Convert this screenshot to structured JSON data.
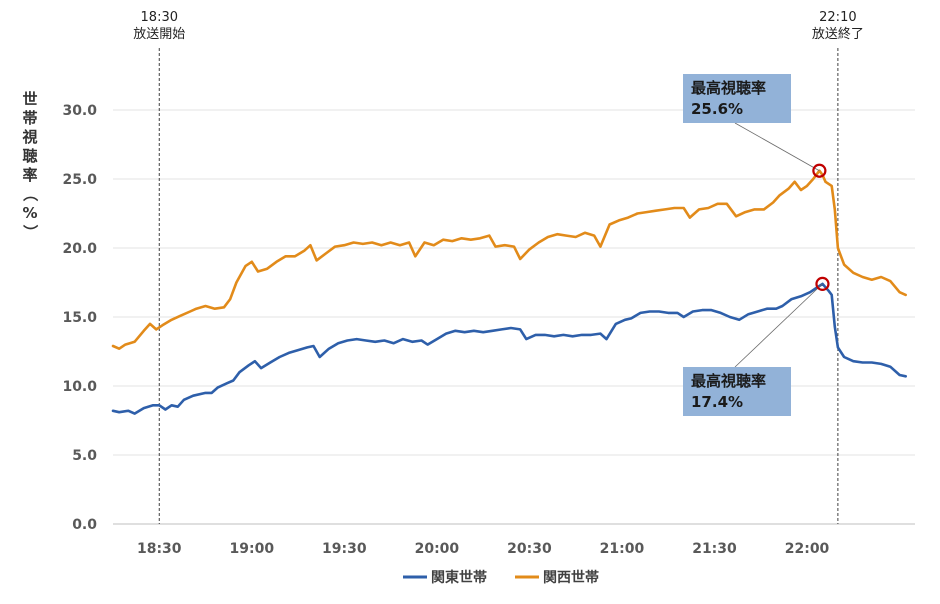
{
  "chart_data": {
    "type": "line",
    "ylabel": "世帯視聴率（%）",
    "ylim": [
      0,
      30
    ],
    "yticks": [
      "0.0",
      "5.0",
      "10.0",
      "15.0",
      "20.0",
      "25.0",
      "30.0"
    ],
    "x_start": "18:15",
    "x_end": "22:35",
    "xticks": [
      "18:30",
      "19:00",
      "19:30",
      "20:00",
      "20:30",
      "21:00",
      "21:30",
      "22:00"
    ],
    "grid": true,
    "legend_position": "bottom",
    "markers": [
      {
        "time": "18:30",
        "label_time": "18:30",
        "label_text": "放送開始"
      },
      {
        "time": "22:10",
        "label_time": "22:10",
        "label_text": "放送終了"
      }
    ],
    "series": [
      {
        "name": "関東世帯",
        "color": "#2e5faa",
        "points": [
          [
            "18:15",
            8.2
          ],
          [
            "18:17",
            8.1
          ],
          [
            "18:20",
            8.2
          ],
          [
            "18:22",
            8.0
          ],
          [
            "18:25",
            8.4
          ],
          [
            "18:28",
            8.6
          ],
          [
            "18:30",
            8.6
          ],
          [
            "18:32",
            8.3
          ],
          [
            "18:34",
            8.6
          ],
          [
            "18:36",
            8.5
          ],
          [
            "18:38",
            9.0
          ],
          [
            "18:41",
            9.3
          ],
          [
            "18:45",
            9.5
          ],
          [
            "18:47",
            9.5
          ],
          [
            "18:49",
            9.9
          ],
          [
            "18:52",
            10.2
          ],
          [
            "18:54",
            10.4
          ],
          [
            "18:56",
            11.0
          ],
          [
            "18:59",
            11.5
          ],
          [
            "19:01",
            11.8
          ],
          [
            "19:03",
            11.3
          ],
          [
            "19:06",
            11.7
          ],
          [
            "19:09",
            12.1
          ],
          [
            "19:12",
            12.4
          ],
          [
            "19:15",
            12.6
          ],
          [
            "19:18",
            12.8
          ],
          [
            "19:20",
            12.9
          ],
          [
            "19:22",
            12.1
          ],
          [
            "19:25",
            12.7
          ],
          [
            "19:28",
            13.1
          ],
          [
            "19:31",
            13.3
          ],
          [
            "19:34",
            13.4
          ],
          [
            "19:37",
            13.3
          ],
          [
            "19:40",
            13.2
          ],
          [
            "19:43",
            13.3
          ],
          [
            "19:46",
            13.1
          ],
          [
            "19:49",
            13.4
          ],
          [
            "19:52",
            13.2
          ],
          [
            "19:55",
            13.3
          ],
          [
            "19:57",
            13.0
          ],
          [
            "20:00",
            13.4
          ],
          [
            "20:03",
            13.8
          ],
          [
            "20:06",
            14.0
          ],
          [
            "20:09",
            13.9
          ],
          [
            "20:12",
            14.0
          ],
          [
            "20:15",
            13.9
          ],
          [
            "20:18",
            14.0
          ],
          [
            "20:21",
            14.1
          ],
          [
            "20:24",
            14.2
          ],
          [
            "20:27",
            14.1
          ],
          [
            "20:29",
            13.4
          ],
          [
            "20:32",
            13.7
          ],
          [
            "20:35",
            13.7
          ],
          [
            "20:38",
            13.6
          ],
          [
            "20:41",
            13.7
          ],
          [
            "20:44",
            13.6
          ],
          [
            "20:47",
            13.7
          ],
          [
            "20:50",
            13.7
          ],
          [
            "20:53",
            13.8
          ],
          [
            "20:55",
            13.4
          ],
          [
            "20:58",
            14.5
          ],
          [
            "21:01",
            14.8
          ],
          [
            "21:03",
            14.9
          ],
          [
            "21:06",
            15.3
          ],
          [
            "21:09",
            15.4
          ],
          [
            "21:12",
            15.4
          ],
          [
            "21:15",
            15.3
          ],
          [
            "21:18",
            15.3
          ],
          [
            "21:20",
            15.0
          ],
          [
            "21:23",
            15.4
          ],
          [
            "21:26",
            15.5
          ],
          [
            "21:29",
            15.5
          ],
          [
            "21:32",
            15.3
          ],
          [
            "21:35",
            15.0
          ],
          [
            "21:38",
            14.8
          ],
          [
            "21:41",
            15.2
          ],
          [
            "21:44",
            15.4
          ],
          [
            "21:47",
            15.6
          ],
          [
            "21:50",
            15.6
          ],
          [
            "21:52",
            15.8
          ],
          [
            "21:55",
            16.3
          ],
          [
            "21:58",
            16.5
          ],
          [
            "22:01",
            16.8
          ],
          [
            "22:03",
            17.1
          ],
          [
            "22:05",
            17.4
          ],
          [
            "22:07",
            16.9
          ],
          [
            "22:08",
            16.6
          ],
          [
            "22:09",
            14.3
          ],
          [
            "22:10",
            12.8
          ],
          [
            "22:12",
            12.1
          ],
          [
            "22:15",
            11.8
          ],
          [
            "22:18",
            11.7
          ],
          [
            "22:21",
            11.7
          ],
          [
            "22:24",
            11.6
          ],
          [
            "22:27",
            11.4
          ],
          [
            "22:30",
            10.8
          ],
          [
            "22:32",
            10.7
          ]
        ]
      },
      {
        "name": "関西世帯",
        "color": "#e28b1a",
        "points": [
          [
            "18:15",
            12.9
          ],
          [
            "18:17",
            12.7
          ],
          [
            "18:19",
            13.0
          ],
          [
            "18:22",
            13.2
          ],
          [
            "18:25",
            14.0
          ],
          [
            "18:27",
            14.5
          ],
          [
            "18:29",
            14.1
          ],
          [
            "18:31",
            14.4
          ],
          [
            "18:34",
            14.8
          ],
          [
            "18:37",
            15.1
          ],
          [
            "18:40",
            15.4
          ],
          [
            "18:42",
            15.6
          ],
          [
            "18:45",
            15.8
          ],
          [
            "18:48",
            15.6
          ],
          [
            "18:51",
            15.7
          ],
          [
            "18:53",
            16.3
          ],
          [
            "18:55",
            17.5
          ],
          [
            "18:58",
            18.7
          ],
          [
            "19:00",
            19.0
          ],
          [
            "19:02",
            18.3
          ],
          [
            "19:05",
            18.5
          ],
          [
            "19:08",
            19.0
          ],
          [
            "19:11",
            19.4
          ],
          [
            "19:14",
            19.4
          ],
          [
            "19:17",
            19.8
          ],
          [
            "19:19",
            20.2
          ],
          [
            "19:21",
            19.1
          ],
          [
            "19:24",
            19.6
          ],
          [
            "19:27",
            20.1
          ],
          [
            "19:30",
            20.2
          ],
          [
            "19:33",
            20.4
          ],
          [
            "19:36",
            20.3
          ],
          [
            "19:39",
            20.4
          ],
          [
            "19:42",
            20.2
          ],
          [
            "19:45",
            20.4
          ],
          [
            "19:48",
            20.2
          ],
          [
            "19:51",
            20.4
          ],
          [
            "19:53",
            19.4
          ],
          [
            "19:56",
            20.4
          ],
          [
            "19:59",
            20.2
          ],
          [
            "20:02",
            20.6
          ],
          [
            "20:05",
            20.5
          ],
          [
            "20:08",
            20.7
          ],
          [
            "20:11",
            20.6
          ],
          [
            "20:14",
            20.7
          ],
          [
            "20:17",
            20.9
          ],
          [
            "20:19",
            20.1
          ],
          [
            "20:22",
            20.2
          ],
          [
            "20:25",
            20.1
          ],
          [
            "20:27",
            19.2
          ],
          [
            "20:30",
            19.9
          ],
          [
            "20:33",
            20.4
          ],
          [
            "20:36",
            20.8
          ],
          [
            "20:39",
            21.0
          ],
          [
            "20:42",
            20.9
          ],
          [
            "20:45",
            20.8
          ],
          [
            "20:48",
            21.1
          ],
          [
            "20:51",
            20.9
          ],
          [
            "20:53",
            20.1
          ],
          [
            "20:56",
            21.7
          ],
          [
            "20:59",
            22.0
          ],
          [
            "21:02",
            22.2
          ],
          [
            "21:05",
            22.5
          ],
          [
            "21:08",
            22.6
          ],
          [
            "21:11",
            22.7
          ],
          [
            "21:14",
            22.8
          ],
          [
            "21:17",
            22.9
          ],
          [
            "21:20",
            22.9
          ],
          [
            "21:22",
            22.2
          ],
          [
            "21:25",
            22.8
          ],
          [
            "21:28",
            22.9
          ],
          [
            "21:31",
            23.2
          ],
          [
            "21:34",
            23.2
          ],
          [
            "21:37",
            22.3
          ],
          [
            "21:40",
            22.6
          ],
          [
            "21:43",
            22.8
          ],
          [
            "21:46",
            22.8
          ],
          [
            "21:49",
            23.3
          ],
          [
            "21:51",
            23.8
          ],
          [
            "21:54",
            24.3
          ],
          [
            "21:56",
            24.8
          ],
          [
            "21:58",
            24.2
          ],
          [
            "22:00",
            24.5
          ],
          [
            "22:02",
            25.0
          ],
          [
            "22:04",
            25.6
          ],
          [
            "22:05",
            25.3
          ],
          [
            "22:06",
            24.8
          ],
          [
            "22:08",
            24.5
          ],
          [
            "22:09",
            22.8
          ],
          [
            "22:10",
            20.0
          ],
          [
            "22:12",
            18.8
          ],
          [
            "22:15",
            18.2
          ],
          [
            "22:18",
            17.9
          ],
          [
            "22:21",
            17.7
          ],
          [
            "22:24",
            17.9
          ],
          [
            "22:27",
            17.6
          ],
          [
            "22:30",
            16.8
          ],
          [
            "22:32",
            16.6
          ]
        ]
      }
    ],
    "callouts": [
      {
        "series": "関西世帯",
        "time": "22:04",
        "value": 25.6,
        "label": "最高視聴率",
        "value_text": "25.6%",
        "box_color": "#92b2d8",
        "circle_color": "#c00000"
      },
      {
        "series": "関東世帯",
        "time": "22:05",
        "value": 17.4,
        "label": "最高視聴率",
        "value_text": "17.4%",
        "box_color": "#92b2d8",
        "circle_color": "#c00000"
      }
    ]
  }
}
